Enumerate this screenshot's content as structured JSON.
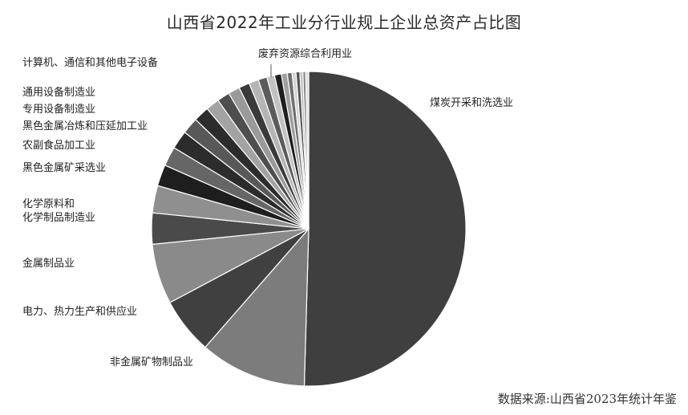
{
  "chart_data": {
    "type": "pie",
    "title": "山西省2022年工业分行业规上企业总资产占比图",
    "slices": [
      {
        "name": "煤炭开采和洗选业",
        "value": 50.5,
        "color": "#3f3f3f"
      },
      {
        "name": "非金属矿物制品业",
        "value": 11.0,
        "color": "#7c7c7c"
      },
      {
        "name": "电力、热力生产和供应业",
        "value": 5.8,
        "color": "#404040"
      },
      {
        "name": "金属制品业",
        "value": 6.2,
        "color": "#8a8a8a"
      },
      {
        "name": "化学原料和化学制品制造业",
        "value": 3.2,
        "color": "#4a4a4a"
      },
      {
        "name": "",
        "value": 2.8,
        "color": "#8f8f8f"
      },
      {
        "name": "黑色金属矿采选业",
        "value": 2.2,
        "color": "#1e1e1e"
      },
      {
        "name": "农副食品加工业",
        "value": 2.0,
        "color": "#666666"
      },
      {
        "name": "黑色金属冶炼和压延加工业",
        "value": 1.9,
        "color": "#2c2c2c"
      },
      {
        "name": "专用设备制造业",
        "value": 1.7,
        "color": "#585858"
      },
      {
        "name": "通用设备制造业",
        "value": 1.6,
        "color": "#2c2c2c"
      },
      {
        "name": "",
        "value": 1.4,
        "color": "#a3a3a3"
      },
      {
        "name": "",
        "value": 1.3,
        "color": "#4e4e4e"
      },
      {
        "name": "",
        "value": 1.2,
        "color": "#9a9a9a"
      },
      {
        "name": "",
        "value": 1.1,
        "color": "#3a3a3a"
      },
      {
        "name": "计算机、通信和其他电子设备",
        "value": 1.0,
        "color": "#b5b5b5"
      },
      {
        "name": "",
        "value": 0.9,
        "color": "#5c5c5c"
      },
      {
        "name": "",
        "value": 0.8,
        "color": "#c2c2c2"
      },
      {
        "name": "",
        "value": 0.7,
        "color": "#1f1f1f"
      },
      {
        "name": "",
        "value": 0.6,
        "color": "#a0a0a0"
      },
      {
        "name": "",
        "value": 0.5,
        "color": "#707070"
      },
      {
        "name": "",
        "value": 0.4,
        "color": "#d3d3d3"
      },
      {
        "name": "",
        "value": 0.4,
        "color": "#555555"
      },
      {
        "name": "",
        "value": 0.3,
        "color": "#bdbdbd"
      },
      {
        "name": "",
        "value": 0.3,
        "color": "#888888"
      },
      {
        "name": "废弃资源综合利用业",
        "value": 0.3,
        "color": "#dcdcdc"
      }
    ],
    "labels": {
      "coal": "煤炭开采和洗选业",
      "nonmetal": "非金属矿物制品业",
      "power": "电力、热力生产和供应业",
      "metal_products": "金属制品业",
      "chem_line1": "化学原料和",
      "chem_line2": "化学制品制造业",
      "ferrous_mining": "黑色金属矿采选业",
      "agri": "农副食品加工业",
      "ferrous_smelting": "黑色金属冶炼和压延加工业",
      "special_equip": "专用设备制造业",
      "general_equip": "通用设备制造业",
      "electronics": "计算机、通信和其他电子设备",
      "waste": "废弃资源综合利用业"
    },
    "legend": "none",
    "source": "数据来源:山西省2023年统计年鉴"
  }
}
